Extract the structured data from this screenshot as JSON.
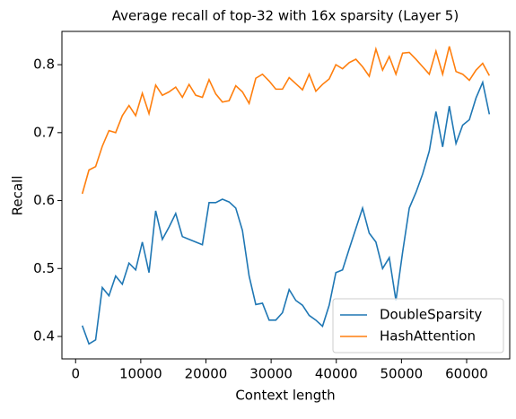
{
  "chart_data": {
    "type": "line",
    "title": "Average recall of top-32 with 16x sparsity (Layer 5)",
    "x_label": "Context length",
    "y_label": "Recall",
    "x": [
      1024,
      2048,
      3072,
      4096,
      5120,
      6144,
      7168,
      8192,
      9216,
      10240,
      11264,
      12288,
      13312,
      14336,
      15360,
      16384,
      17408,
      18432,
      19456,
      20480,
      21504,
      22528,
      23552,
      24576,
      25600,
      26624,
      27648,
      28672,
      29696,
      30720,
      31744,
      32768,
      33792,
      34816,
      35840,
      36864,
      37888,
      38912,
      39936,
      40960,
      41984,
      43008,
      44032,
      45056,
      46080,
      47104,
      48128,
      49152,
      50176,
      51200,
      52224,
      53248,
      54272,
      55296,
      56320,
      57344,
      58368,
      59392,
      60416,
      61440,
      62464,
      63488
    ],
    "series": [
      {
        "name": "DoubleSparsity",
        "color": "#1f77b4",
        "values": [
          0.416,
          0.389,
          0.395,
          0.472,
          0.46,
          0.489,
          0.477,
          0.508,
          0.498,
          0.539,
          0.494,
          0.585,
          0.543,
          0.561,
          0.581,
          0.547,
          0.543,
          0.539,
          0.535,
          0.597,
          0.597,
          0.602,
          0.598,
          0.589,
          0.556,
          0.489,
          0.447,
          0.449,
          0.424,
          0.424,
          0.435,
          0.469,
          0.453,
          0.446,
          0.431,
          0.424,
          0.415,
          0.446,
          0.494,
          0.498,
          0.529,
          0.559,
          0.589,
          0.552,
          0.539,
          0.5,
          0.516,
          0.453,
          0.524,
          0.589,
          0.612,
          0.639,
          0.673,
          0.731,
          0.679,
          0.739,
          0.684,
          0.711,
          0.719,
          0.751,
          0.774,
          0.727
        ]
      },
      {
        "name": "HashAttention",
        "color": "#ff7f0e",
        "values": [
          0.61,
          0.645,
          0.65,
          0.68,
          0.703,
          0.7,
          0.725,
          0.74,
          0.725,
          0.758,
          0.728,
          0.77,
          0.755,
          0.76,
          0.767,
          0.752,
          0.771,
          0.755,
          0.752,
          0.778,
          0.757,
          0.745,
          0.747,
          0.769,
          0.76,
          0.743,
          0.78,
          0.786,
          0.776,
          0.764,
          0.764,
          0.781,
          0.772,
          0.763,
          0.786,
          0.761,
          0.771,
          0.779,
          0.8,
          0.794,
          0.803,
          0.808,
          0.797,
          0.783,
          0.823,
          0.792,
          0.812,
          0.786,
          0.817,
          0.818,
          0.808,
          0.797,
          0.786,
          0.82,
          0.786,
          0.827,
          0.79,
          0.786,
          0.777,
          0.792,
          0.802,
          0.784
        ]
      }
    ],
    "xlim": [
      -2099,
      66611
    ],
    "xticks": [
      0,
      10000,
      20000,
      30000,
      40000,
      50000,
      60000
    ],
    "ylim": [
      0.367,
      0.849
    ],
    "yticks": [
      0.4,
      0.5,
      0.6,
      0.7,
      0.8
    ],
    "legend": "lower right"
  }
}
